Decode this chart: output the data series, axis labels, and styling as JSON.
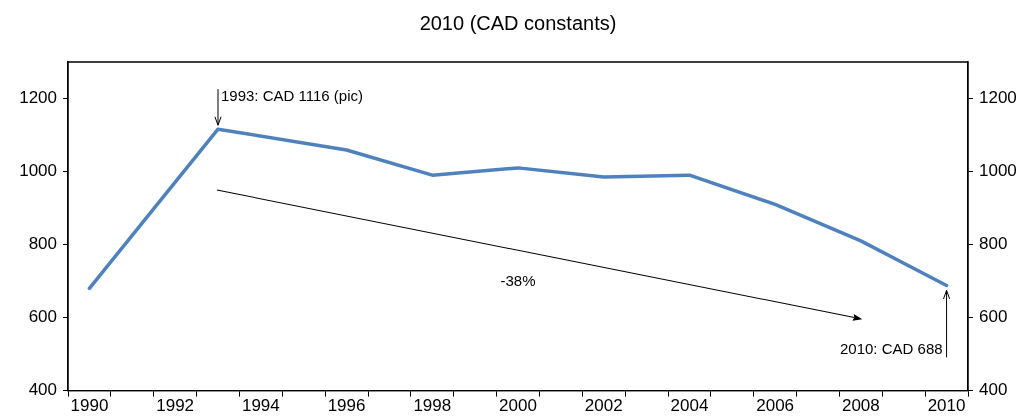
{
  "chart_data": {
    "type": "line",
    "title": "2010 (CAD constants)",
    "categories": [
      "1990",
      null,
      "1992",
      null,
      "1994",
      null,
      "1996",
      null,
      "1998",
      null,
      "2000",
      null,
      "2002",
      null,
      "2004",
      null,
      "2006",
      null,
      "2008",
      null,
      "2010"
    ],
    "series": [
      {
        "color": "#4f81bd",
        "values": [
          680,
          null,
          null,
          1116,
          null,
          null,
          1059,
          null,
          990,
          null,
          1010,
          null,
          985,
          null,
          990,
          null,
          910,
          null,
          810,
          null,
          688
        ]
      }
    ],
    "ylim": [
      400,
      1300
    ],
    "yticks": [
      400,
      600,
      800,
      1000,
      1200
    ],
    "y2lim": [
      400,
      1300
    ],
    "y2ticks": [
      400,
      600,
      800,
      1000,
      1200
    ],
    "annotations": [
      "1993: CAD 1116 (pic)",
      {
        "text": "2010: CAD 688",
        "x": "2010",
        "y": 688
      },
      "-38%"
    ],
    "grid": false,
    "legend": false,
    "marker": "none",
    "line_style": "solid"
  }
}
